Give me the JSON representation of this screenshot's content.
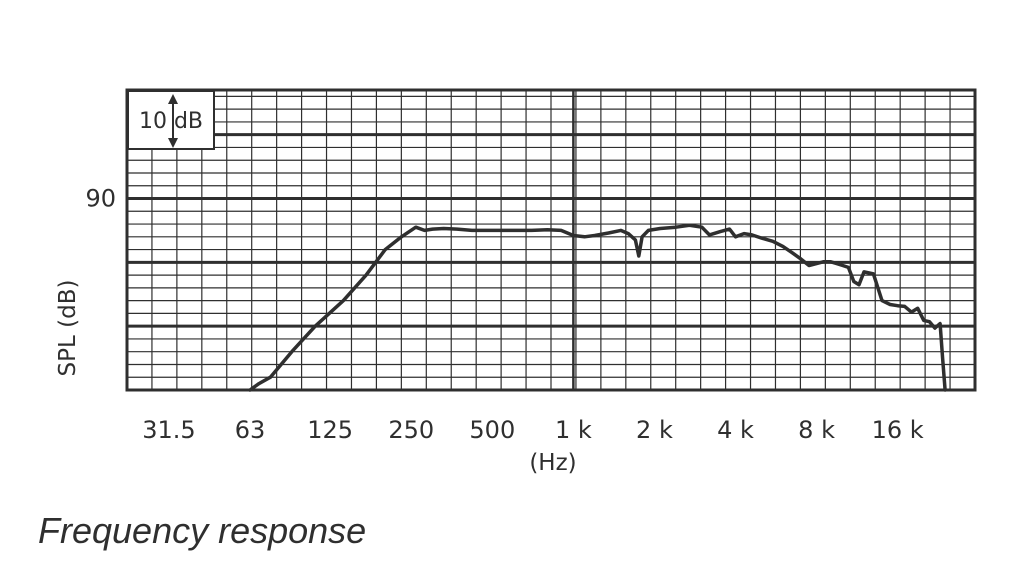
{
  "caption": "Frequency response",
  "chart_data": {
    "type": "line",
    "title": "Frequency response",
    "xlabel": "(Hz)",
    "ylabel": "SPL (dB)",
    "x_scale": "log",
    "xlim": [
      22,
      31000
    ],
    "ylim": [
      60,
      107
    ],
    "scale_marker": "10 dB",
    "grid": true,
    "x_ticks": [
      {
        "label": "31.5",
        "value": 31.5
      },
      {
        "label": "63",
        "value": 63
      },
      {
        "label": "125",
        "value": 125
      },
      {
        "label": "250",
        "value": 250
      },
      {
        "label": "500",
        "value": 500
      },
      {
        "label": "1 k",
        "value": 1000
      },
      {
        "label": "2 k",
        "value": 2000
      },
      {
        "label": "4 k",
        "value": 4000
      },
      {
        "label": "8 k",
        "value": 8000
      },
      {
        "label": "16 k",
        "value": 16000
      }
    ],
    "y_ticks": [
      {
        "label": "90",
        "value": 90
      }
    ],
    "series": [
      {
        "color": "#2f2f2f",
        "x": [
          63,
          68,
          75,
          90,
          110,
          140,
          170,
          200,
          230,
          260,
          280,
          300,
          330,
          370,
          420,
          500,
          600,
          700,
          800,
          900,
          1000,
          1100,
          1200,
          1350,
          1500,
          1600,
          1700,
          1750,
          1800,
          1900,
          2100,
          2400,
          2700,
          3000,
          3200,
          3500,
          3800,
          4000,
          4300,
          4600,
          5000,
          5500,
          6000,
          6500,
          7000,
          7500,
          8000,
          8500,
          9000,
          9500,
          10000,
          10500,
          11000,
          11500,
          12000,
          13000,
          14000,
          15000,
          16000,
          17000,
          18000,
          19000,
          20000,
          21000,
          22000,
          23000,
          23500,
          24000
        ],
        "y": [
          60,
          61,
          62,
          66,
          70,
          74,
          78,
          82,
          84,
          85.5,
          85,
          85.2,
          85.3,
          85.2,
          85,
          85,
          85,
          85,
          85.1,
          85.0,
          84.2,
          84.0,
          84.2,
          84.6,
          85,
          84.5,
          83.5,
          81,
          84,
          85,
          85.3,
          85.5,
          85.8,
          85.5,
          84.3,
          84.8,
          85.2,
          84.0,
          84.5,
          84.3,
          83.8,
          83.3,
          82.5,
          81.5,
          80.5,
          79.5,
          79.8,
          80.1,
          80.1,
          79.8,
          79.5,
          79.2,
          77,
          76.5,
          78.5,
          78.2,
          74,
          73.4,
          73.2,
          73.1,
          72.2,
          72.8,
          70.9,
          70.7,
          69.7,
          70.4,
          65,
          60
        ]
      }
    ]
  }
}
